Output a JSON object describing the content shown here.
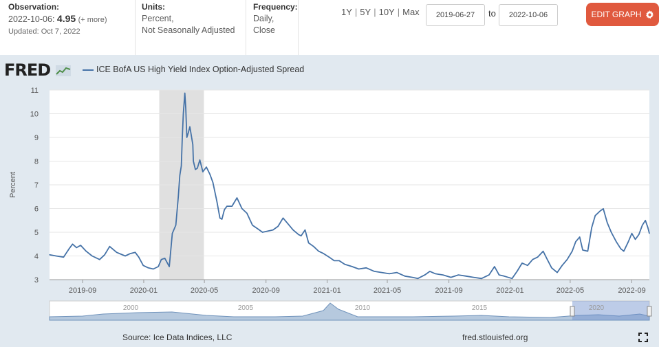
{
  "header": {
    "observation_label": "Observation:",
    "observation_date": "2022-10-06:",
    "observation_value": "4.95",
    "observation_more": "(+ more)",
    "updated": "Updated: Oct 7, 2022",
    "units_label": "Units:",
    "units_line1": "Percent,",
    "units_line2": "Not Seasonally Adjusted",
    "frequency_label": "Frequency:",
    "frequency_line1": "Daily,",
    "frequency_line2": "Close"
  },
  "ranges": [
    "1Y",
    "5Y",
    "10Y",
    "Max"
  ],
  "date_range": {
    "start": "2019-06-27",
    "to_label": "to",
    "end": "2022-10-06"
  },
  "edit_button": "EDIT GRAPH",
  "logo_text": "FRED",
  "footer": {
    "source": "Source: Ice Data Indices, LLC",
    "url": "fred.stlouisfed.org"
  },
  "colors": {
    "series": "#4572a7",
    "recession": "#e0e0e0",
    "panel_bg": "#e1e9f0",
    "accent": "#e0593e"
  },
  "chart_data": {
    "type": "line",
    "ylabel": "Percent",
    "ylim": [
      3,
      11
    ],
    "y_ticks": [
      3,
      4,
      5,
      6,
      7,
      8,
      9,
      10,
      11
    ],
    "x_tick_labels": [
      "2019-09",
      "2020-01",
      "2020-05",
      "2020-09",
      "2021-01",
      "2021-05",
      "2021-09",
      "2022-01",
      "2022-05",
      "2022-09"
    ],
    "xlim": [
      "2019-06-27",
      "2022-10-06"
    ],
    "recession_shading": [
      [
        "2020-02-01",
        "2020-04-30"
      ]
    ],
    "grid": true,
    "legend": "top-left",
    "navigator_labels": [
      "2000",
      "2005",
      "2010",
      "2015",
      "2020"
    ],
    "series": [
      {
        "name": "ICE BofA US High Yield Index Option-Adjusted Spread",
        "points": [
          [
            "2019-06-27",
            4.05
          ],
          [
            "2019-07-10",
            4.0
          ],
          [
            "2019-07-25",
            3.95
          ],
          [
            "2019-08-05",
            4.3
          ],
          [
            "2019-08-12",
            4.5
          ],
          [
            "2019-08-20",
            4.35
          ],
          [
            "2019-08-28",
            4.45
          ],
          [
            "2019-09-08",
            4.2
          ],
          [
            "2019-09-20",
            4.0
          ],
          [
            "2019-10-05",
            3.85
          ],
          [
            "2019-10-15",
            4.05
          ],
          [
            "2019-10-25",
            4.4
          ],
          [
            "2019-11-08",
            4.15
          ],
          [
            "2019-11-25",
            4.0
          ],
          [
            "2019-12-05",
            4.1
          ],
          [
            "2019-12-15",
            4.15
          ],
          [
            "2019-12-22",
            3.95
          ],
          [
            "2019-12-31",
            3.6
          ],
          [
            "2020-01-10",
            3.5
          ],
          [
            "2020-01-20",
            3.45
          ],
          [
            "2020-01-30",
            3.55
          ],
          [
            "2020-02-05",
            3.85
          ],
          [
            "2020-02-12",
            3.9
          ],
          [
            "2020-02-21",
            3.55
          ],
          [
            "2020-02-27",
            4.95
          ],
          [
            "2020-03-05",
            5.3
          ],
          [
            "2020-03-10",
            6.5
          ],
          [
            "2020-03-13",
            7.4
          ],
          [
            "2020-03-16",
            7.8
          ],
          [
            "2020-03-18",
            9.0
          ],
          [
            "2020-03-20",
            10.0
          ],
          [
            "2020-03-23",
            10.87
          ],
          [
            "2020-03-25",
            10.2
          ],
          [
            "2020-03-27",
            9.0
          ],
          [
            "2020-03-30",
            9.2
          ],
          [
            "2020-04-02",
            9.45
          ],
          [
            "2020-04-08",
            8.7
          ],
          [
            "2020-04-09",
            8.0
          ],
          [
            "2020-04-13",
            7.65
          ],
          [
            "2020-04-17",
            7.7
          ],
          [
            "2020-04-22",
            8.05
          ],
          [
            "2020-04-28",
            7.55
          ],
          [
            "2020-05-05",
            7.75
          ],
          [
            "2020-05-12",
            7.45
          ],
          [
            "2020-05-18",
            7.1
          ],
          [
            "2020-05-26",
            6.3
          ],
          [
            "2020-06-01",
            5.6
          ],
          [
            "2020-06-05",
            5.55
          ],
          [
            "2020-06-10",
            5.95
          ],
          [
            "2020-06-15",
            6.1
          ],
          [
            "2020-06-25",
            6.1
          ],
          [
            "2020-07-05",
            6.45
          ],
          [
            "2020-07-15",
            6.0
          ],
          [
            "2020-07-25",
            5.8
          ],
          [
            "2020-08-05",
            5.3
          ],
          [
            "2020-08-15",
            5.15
          ],
          [
            "2020-08-25",
            5.0
          ],
          [
            "2020-09-05",
            5.05
          ],
          [
            "2020-09-15",
            5.1
          ],
          [
            "2020-09-25",
            5.25
          ],
          [
            "2020-10-05",
            5.6
          ],
          [
            "2020-10-15",
            5.35
          ],
          [
            "2020-10-25",
            5.1
          ],
          [
            "2020-11-05",
            4.9
          ],
          [
            "2020-11-10",
            4.85
          ],
          [
            "2020-11-18",
            5.1
          ],
          [
            "2020-11-25",
            4.55
          ],
          [
            "2020-12-05",
            4.4
          ],
          [
            "2020-12-15",
            4.2
          ],
          [
            "2020-12-25",
            4.1
          ],
          [
            "2021-01-05",
            3.95
          ],
          [
            "2021-01-15",
            3.8
          ],
          [
            "2021-01-25",
            3.8
          ],
          [
            "2021-02-05",
            3.65
          ],
          [
            "2021-02-20",
            3.55
          ],
          [
            "2021-03-05",
            3.45
          ],
          [
            "2021-03-20",
            3.5
          ],
          [
            "2021-04-05",
            3.35
          ],
          [
            "2021-04-20",
            3.3
          ],
          [
            "2021-05-05",
            3.25
          ],
          [
            "2021-05-20",
            3.3
          ],
          [
            "2021-06-05",
            3.15
          ],
          [
            "2021-06-20",
            3.1
          ],
          [
            "2021-07-01",
            3.05
          ],
          [
            "2021-07-15",
            3.2
          ],
          [
            "2021-07-25",
            3.35
          ],
          [
            "2021-08-05",
            3.25
          ],
          [
            "2021-08-20",
            3.2
          ],
          [
            "2021-09-05",
            3.1
          ],
          [
            "2021-09-20",
            3.2
          ],
          [
            "2021-10-05",
            3.15
          ],
          [
            "2021-10-20",
            3.1
          ],
          [
            "2021-11-05",
            3.05
          ],
          [
            "2021-11-20",
            3.2
          ],
          [
            "2021-12-01",
            3.55
          ],
          [
            "2021-12-10",
            3.2
          ],
          [
            "2021-12-20",
            3.15
          ],
          [
            "2022-01-05",
            3.05
          ],
          [
            "2022-01-15",
            3.35
          ],
          [
            "2022-01-25",
            3.7
          ],
          [
            "2022-02-05",
            3.6
          ],
          [
            "2022-02-15",
            3.85
          ],
          [
            "2022-02-25",
            3.95
          ],
          [
            "2022-03-08",
            4.2
          ],
          [
            "2022-03-15",
            3.9
          ],
          [
            "2022-03-25",
            3.5
          ],
          [
            "2022-04-05",
            3.3
          ],
          [
            "2022-04-15",
            3.6
          ],
          [
            "2022-04-25",
            3.85
          ],
          [
            "2022-05-05",
            4.2
          ],
          [
            "2022-05-12",
            4.6
          ],
          [
            "2022-05-20",
            4.8
          ],
          [
            "2022-05-26",
            4.25
          ],
          [
            "2022-06-05",
            4.2
          ],
          [
            "2022-06-13",
            5.2
          ],
          [
            "2022-06-20",
            5.7
          ],
          [
            "2022-06-30",
            5.9
          ],
          [
            "2022-07-06",
            5.99
          ],
          [
            "2022-07-14",
            5.4
          ],
          [
            "2022-07-22",
            5.0
          ],
          [
            "2022-08-01",
            4.6
          ],
          [
            "2022-08-10",
            4.3
          ],
          [
            "2022-08-16",
            4.2
          ],
          [
            "2022-08-25",
            4.6
          ],
          [
            "2022-09-01",
            4.95
          ],
          [
            "2022-09-08",
            4.7
          ],
          [
            "2022-09-15",
            4.9
          ],
          [
            "2022-09-22",
            5.3
          ],
          [
            "2022-09-28",
            5.5
          ],
          [
            "2022-10-03",
            5.2
          ],
          [
            "2022-10-06",
            4.95
          ]
        ]
      }
    ]
  }
}
